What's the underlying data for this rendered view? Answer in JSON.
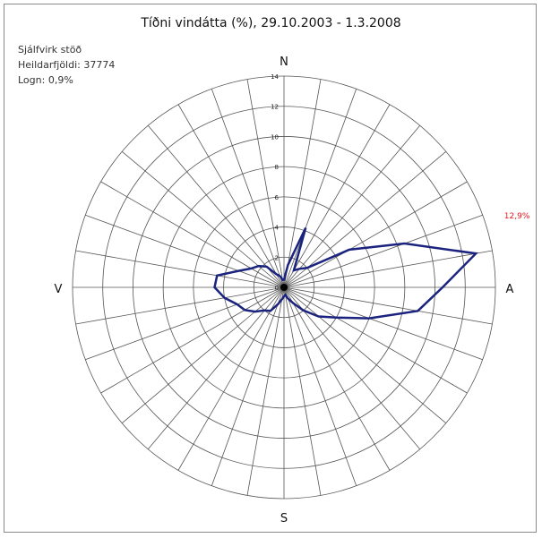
{
  "chart_data": {
    "type": "radar",
    "title": "Tíðni vindátta (%), 29.10.2003 - 1.3.2008",
    "info_lines": [
      "Sjálfvirk stöð",
      "Heildarfjöldi: 37774",
      "Logn: 0,9%"
    ],
    "directions": [
      "N",
      "A",
      "S",
      "V"
    ],
    "radial_ticks": [
      "0",
      "2",
      "4",
      "6",
      "8",
      "10",
      "12",
      "14"
    ],
    "r_max": 14,
    "sector_count": 36,
    "max_label": "12,9%",
    "max_label_color": "#e8141b",
    "line_color": "#1a237e",
    "series": [
      {
        "directions_deg": [
          0,
          10,
          20,
          30,
          40,
          50,
          60,
          70,
          80,
          90,
          100,
          110,
          120,
          130,
          140,
          150,
          160,
          170,
          180,
          190,
          200,
          210,
          220,
          230,
          240,
          250,
          260,
          270,
          280,
          290,
          300,
          310,
          320,
          330,
          340,
          350
        ],
        "values": [
          0.5,
          1.5,
          4.2,
          1.3,
          1.6,
          2.0,
          5.0,
          8.5,
          12.9,
          10.5,
          9.0,
          6.0,
          4.0,
          3.0,
          2.0,
          1.2,
          0.8,
          0.5,
          0.6,
          0.8,
          1.2,
          1.8,
          2.0,
          2.5,
          3.0,
          3.3,
          4.0,
          4.6,
          4.5,
          3.2,
          2.5,
          2.2,
          1.8,
          1.0,
          0.8,
          0.5
        ]
      }
    ]
  }
}
